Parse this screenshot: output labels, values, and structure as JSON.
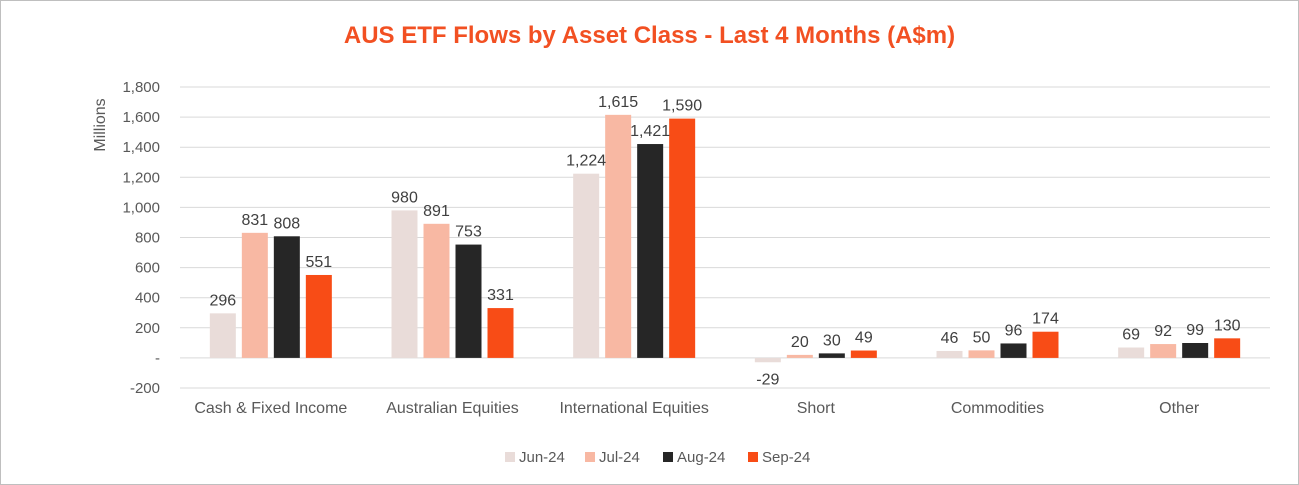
{
  "chart_data": {
    "type": "bar",
    "title": "AUS ETF Flows by Asset Class - Last 4 Months (A$m)",
    "ylabel": "Millions",
    "xlabel": "",
    "ylim": [
      -200,
      1800
    ],
    "ytick_step": 200,
    "ytick_labels": [
      "-200",
      "-",
      "200",
      "400",
      "600",
      "800",
      "1,000",
      "1,200",
      "1,400",
      "1,600",
      "1,800"
    ],
    "grid": true,
    "legend_position": "bottom",
    "categories": [
      "Cash & Fixed Income",
      "Australian Equities",
      "International Equities",
      "Short",
      "Commodities",
      "Other"
    ],
    "series": [
      {
        "name": "Jun-24",
        "color": "#e9dcd9",
        "values": [
          296,
          980,
          1224,
          -29,
          46,
          69
        ]
      },
      {
        "name": "Jul-24",
        "color": "#f8b8a3",
        "values": [
          831,
          891,
          1615,
          20,
          50,
          92
        ]
      },
      {
        "name": "Aug-24",
        "color": "#262626",
        "values": [
          808,
          753,
          1421,
          30,
          96,
          99
        ]
      },
      {
        "name": "Sep-24",
        "color": "#f84c16",
        "values": [
          551,
          331,
          1590,
          49,
          174,
          130
        ]
      }
    ]
  }
}
